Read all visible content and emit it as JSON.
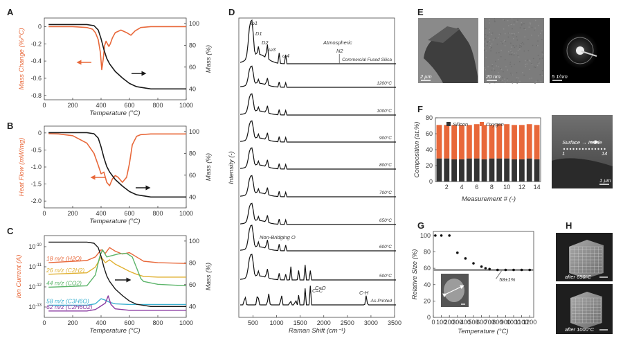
{
  "panels": {
    "A": "A",
    "B": "B",
    "C": "C",
    "D": "D",
    "E": "E",
    "F": "F",
    "G": "G",
    "H": "H"
  },
  "colors": {
    "orange": "#e8683a",
    "black": "#1a1a1a",
    "gray": "#9a9a9a"
  },
  "chart_data": [
    {
      "id": "A",
      "type": "line",
      "xlabel": "Temperature (°C)",
      "ylabel_left": "Mass Change (%/°C)",
      "ylabel_right": "Mass (%)",
      "xlim": [
        0,
        1000
      ],
      "ylim_left": [
        -0.85,
        0.1
      ],
      "ylim_right": [
        30,
        105
      ],
      "xticks": [
        "0",
        "200",
        "400",
        "600",
        "800",
        "1000"
      ],
      "yticks_left": [
        "0",
        "-0.2",
        "-0.4",
        "-0.6",
        "-0.8"
      ],
      "yticks_right": [
        "100",
        "80",
        "60",
        "40"
      ],
      "series": [
        {
          "axis": "left",
          "color": "#e8683a",
          "x": [
            30,
            100,
            200,
            300,
            340,
            360,
            380,
            395,
            405,
            415,
            425,
            435,
            445,
            455,
            465,
            480,
            500,
            540,
            580,
            610,
            640,
            680,
            750,
            1000
          ],
          "y": [
            0.0,
            0.0,
            0.0,
            -0.01,
            -0.03,
            -0.07,
            -0.15,
            -0.3,
            -0.5,
            -0.38,
            -0.22,
            -0.17,
            -0.2,
            -0.23,
            -0.2,
            -0.13,
            -0.07,
            -0.04,
            -0.07,
            -0.1,
            -0.05,
            -0.01,
            0.0,
            0.0
          ]
        },
        {
          "axis": "right",
          "color": "#1a1a1a",
          "x": [
            30,
            300,
            350,
            380,
            400,
            420,
            440,
            460,
            500,
            550,
            600,
            650,
            700,
            750,
            1000
          ],
          "y": [
            99,
            99,
            98,
            94,
            86,
            76,
            68,
            63,
            56,
            50,
            45,
            42,
            41,
            40,
            40
          ]
        }
      ]
    },
    {
      "id": "B",
      "type": "line",
      "xlabel": "Temperature (°C)",
      "ylabel_left": "Heat Flow (mW/mg)",
      "ylabel_right": "Mass (%)",
      "xlim": [
        0,
        1000
      ],
      "ylim_left": [
        -2.2,
        0.2
      ],
      "ylim_right": [
        30,
        105
      ],
      "xticks": [
        "0",
        "200",
        "400",
        "600",
        "800",
        "1000"
      ],
      "yticks_left": [
        "0",
        "-0.5",
        "-1.0",
        "-1.5",
        "-2.0"
      ],
      "yticks_right": [
        "100",
        "80",
        "60",
        "40"
      ],
      "series": [
        {
          "axis": "left",
          "color": "#e8683a",
          "x": [
            30,
            100,
            200,
            300,
            350,
            380,
            400,
            420,
            440,
            460,
            480,
            500,
            520,
            550,
            580,
            600,
            620,
            650,
            680,
            750,
            1000
          ],
          "y": [
            -0.02,
            -0.03,
            -0.08,
            -0.3,
            -0.6,
            -0.95,
            -1.2,
            -1.15,
            -1.45,
            -1.55,
            -1.35,
            -1.25,
            -1.3,
            -1.45,
            -1.3,
            -0.9,
            -0.35,
            -0.1,
            -0.05,
            -0.03,
            -0.03
          ]
        },
        {
          "axis": "right",
          "color": "#1a1a1a",
          "x": [
            30,
            300,
            350,
            380,
            400,
            420,
            440,
            460,
            500,
            550,
            600,
            650,
            700,
            750,
            1000
          ],
          "y": [
            99,
            99,
            98,
            94,
            86,
            76,
            68,
            63,
            56,
            50,
            45,
            42,
            41,
            40,
            40
          ]
        }
      ]
    },
    {
      "id": "C",
      "type": "line",
      "xlabel": "Temperature (°C)",
      "ylabel_left": "Ion Current (A)",
      "ylabel_right": "Mass (%)",
      "xlim": [
        0,
        1000
      ],
      "ylim_right": [
        30,
        105
      ],
      "xticks": [
        "0",
        "200",
        "400",
        "600",
        "800",
        "1000"
      ],
      "yticks_left": [
        "10-10",
        "10-11",
        "10-12",
        "10-13"
      ],
      "yticks_right": [
        "100",
        "80",
        "60",
        "40"
      ],
      "series": [
        {
          "name": "18 m/z (H2O)",
          "color": "#e8683a",
          "x": [
            30,
            300,
            360,
            400,
            430,
            460,
            500,
            550,
            600,
            650,
            700,
            800,
            1000
          ],
          "y": [
            0.72,
            0.75,
            0.8,
            0.9,
            0.85,
            0.93,
            0.88,
            0.84,
            0.86,
            0.8,
            0.74,
            0.72,
            0.71
          ]
        },
        {
          "name": "26 m/z (C2H2)",
          "color": "#e0b030",
          "x": [
            30,
            300,
            360,
            400,
            430,
            460,
            500,
            550,
            600,
            650,
            700,
            800,
            1000
          ],
          "y": [
            0.56,
            0.58,
            0.66,
            0.8,
            0.72,
            0.76,
            0.7,
            0.65,
            0.6,
            0.56,
            0.53,
            0.52,
            0.52
          ]
        },
        {
          "name": "44 m/z (CO2)",
          "color": "#5cb56a",
          "x": [
            30,
            300,
            360,
            390,
            410,
            440,
            480,
            520,
            580,
            620,
            650,
            680,
            700,
            800,
            1000
          ],
          "y": [
            0.38,
            0.4,
            0.55,
            0.8,
            0.9,
            0.8,
            0.82,
            0.84,
            0.85,
            0.8,
            0.65,
            0.5,
            0.46,
            0.42,
            0.4
          ]
        },
        {
          "name": "58 m/z (C3H6O)",
          "color": "#3ab0d0",
          "x": [
            30,
            300,
            360,
            400,
            430,
            460,
            500,
            600,
            800,
            1000
          ],
          "y": [
            0.13,
            0.13,
            0.15,
            0.22,
            0.2,
            0.17,
            0.15,
            0.14,
            0.14,
            0.14
          ]
        },
        {
          "name": "62 m/z (C2H6O2)",
          "color": "#8a3aa0",
          "x": [
            30,
            300,
            360,
            400,
            430,
            450,
            470,
            500,
            600,
            800,
            1000
          ],
          "y": [
            0.05,
            0.05,
            0.07,
            0.12,
            0.16,
            0.26,
            0.14,
            0.08,
            0.06,
            0.06,
            0.06
          ]
        },
        {
          "axis": "right",
          "color": "#1a1a1a",
          "x": [
            30,
            300,
            350,
            380,
            400,
            420,
            440,
            460,
            500,
            550,
            600,
            650,
            700,
            750,
            1000
          ],
          "y": [
            99,
            99,
            98,
            94,
            86,
            76,
            68,
            63,
            56,
            50,
            45,
            42,
            41,
            40,
            40
          ]
        }
      ]
    },
    {
      "id": "D",
      "type": "line",
      "xlabel": "Raman Shift (cm⁻¹)",
      "ylabel": "Intensity (-)",
      "xlim": [
        200,
        3500
      ],
      "xticks": [
        "500",
        "1000",
        "1500",
        "2000",
        "2500",
        "3000",
        "3500"
      ],
      "series_labels": [
        "Commercial Fused Silica",
        "1200°C",
        "1000°C",
        "900°C",
        "800°C",
        "700°C",
        "650°C",
        "600°C",
        "500°C",
        "As-Printed"
      ],
      "annotations": [
        "ω1",
        "D1",
        "D2",
        "ω3",
        "ω4",
        "Atmospheric",
        "N2",
        "Non-Bridging O",
        "C=C",
        "C=O",
        "C-H"
      ]
    },
    {
      "id": "F",
      "type": "bar",
      "ylabel": "Composition (at.%)",
      "xlabel": "Measurement # (-)",
      "ylim": [
        0,
        80
      ],
      "yticks": [
        "0",
        "20",
        "40",
        "60",
        "80"
      ],
      "xticks": [
        "2",
        "4",
        "6",
        "8",
        "10",
        "12",
        "14"
      ],
      "legend": [
        "Silicon",
        "Oxygen"
      ],
      "series": [
        {
          "name": "Silicon",
          "color": "#333333",
          "values": [
            29,
            29,
            28,
            28,
            29,
            29,
            28,
            29,
            29,
            29,
            28,
            28,
            29,
            28
          ]
        },
        {
          "name": "Oxygen",
          "color": "#e8683a",
          "values": [
            42,
            42,
            43,
            43,
            42,
            43,
            43,
            42,
            43,
            43,
            43,
            43,
            43,
            43
          ]
        }
      ]
    },
    {
      "id": "G",
      "type": "scatter",
      "ylabel": "Relative Size (%)",
      "xlabel": "Temperature (°C)",
      "xlim": [
        0,
        1250
      ],
      "ylim": [
        0,
        105
      ],
      "xticks": [
        "0",
        "100",
        "200",
        "300",
        "400",
        "500",
        "600",
        "700",
        "800",
        "900",
        "1000",
        "1100",
        "1200"
      ],
      "yticks": [
        "0",
        "20",
        "40",
        "60",
        "80",
        "100"
      ],
      "annotation": "58±1%",
      "x": [
        25,
        100,
        200,
        300,
        400,
        500,
        600,
        650,
        700,
        800,
        900,
        1000,
        1100,
        1200
      ],
      "y": [
        100,
        100,
        100,
        79,
        72,
        66,
        62,
        60,
        59,
        58,
        58,
        58,
        58,
        58
      ]
    }
  ],
  "imagery": {
    "E_scales": [
      "2 μm",
      "20 nm",
      "5 1/nm"
    ],
    "F_sem": {
      "label": "Surface → Inside",
      "start": "1",
      "end": "14",
      "scale": "1 μm"
    },
    "H_labels": [
      "after 650°C",
      "after 1000°C"
    ]
  }
}
